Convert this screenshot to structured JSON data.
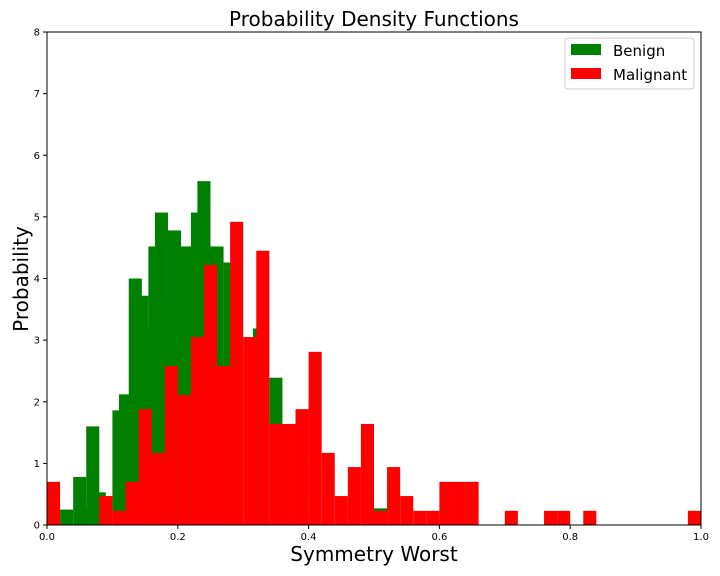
{
  "chart_data": {
    "type": "bar",
    "title": "Probability Density Functions",
    "xlabel": "Symmetry Worst",
    "ylabel": "Probability",
    "xlim": [
      0,
      1
    ],
    "ylim": [
      0,
      8
    ],
    "x_ticks": [
      "0.0",
      "0.2",
      "0.4",
      "0.6",
      "0.8",
      "1.0"
    ],
    "y_ticks": [
      "0",
      "1",
      "2",
      "3",
      "4",
      "5",
      "6",
      "7",
      "8"
    ],
    "bin_width": 0.02,
    "legend": {
      "position": "top-right"
    },
    "series": [
      {
        "name": "Benign",
        "color": "#008000",
        "bins": [
          [
            0.02,
            0.25
          ],
          [
            0.04,
            0.78
          ],
          [
            0.05,
            0.27
          ],
          [
            0.06,
            1.6
          ],
          [
            0.07,
            0.53
          ],
          [
            0.1,
            1.86
          ],
          [
            0.11,
            2.12
          ],
          [
            0.125,
            4.0
          ],
          [
            0.135,
            3.72
          ],
          [
            0.145,
            3.19
          ],
          [
            0.155,
            4.52
          ],
          [
            0.165,
            5.07
          ],
          [
            0.175,
            3.72
          ],
          [
            0.185,
            4.78
          ],
          [
            0.195,
            4.52
          ],
          [
            0.21,
            4.52
          ],
          [
            0.22,
            5.07
          ],
          [
            0.23,
            5.58
          ],
          [
            0.25,
            4.52
          ],
          [
            0.27,
            4.26
          ],
          [
            0.315,
            3.19
          ],
          [
            0.34,
            2.39
          ],
          [
            0.5,
            0.27
          ]
        ]
      },
      {
        "name": "Malignant",
        "color": "#ff0000",
        "bins": [
          [
            0.0,
            0.7
          ],
          [
            0.08,
            0.47
          ],
          [
            0.1,
            0.23
          ],
          [
            0.12,
            0.7
          ],
          [
            0.14,
            1.88
          ],
          [
            0.16,
            1.17
          ],
          [
            0.18,
            2.58
          ],
          [
            0.2,
            2.11
          ],
          [
            0.22,
            3.05
          ],
          [
            0.24,
            4.22
          ],
          [
            0.26,
            2.58
          ],
          [
            0.28,
            4.92
          ],
          [
            0.3,
            3.05
          ],
          [
            0.32,
            4.45
          ],
          [
            0.34,
            1.64
          ],
          [
            0.36,
            1.64
          ],
          [
            0.38,
            1.88
          ],
          [
            0.4,
            2.81
          ],
          [
            0.42,
            1.17
          ],
          [
            0.44,
            0.47
          ],
          [
            0.46,
            0.94
          ],
          [
            0.48,
            1.64
          ],
          [
            0.5,
            0.23
          ],
          [
            0.52,
            0.94
          ],
          [
            0.54,
            0.47
          ],
          [
            0.56,
            0.23
          ],
          [
            0.58,
            0.23
          ],
          [
            0.6,
            0.7
          ],
          [
            0.62,
            0.7
          ],
          [
            0.64,
            0.7
          ],
          [
            0.7,
            0.23
          ],
          [
            0.76,
            0.23
          ],
          [
            0.78,
            0.23
          ],
          [
            0.82,
            0.23
          ],
          [
            0.98,
            0.23
          ]
        ]
      }
    ]
  }
}
